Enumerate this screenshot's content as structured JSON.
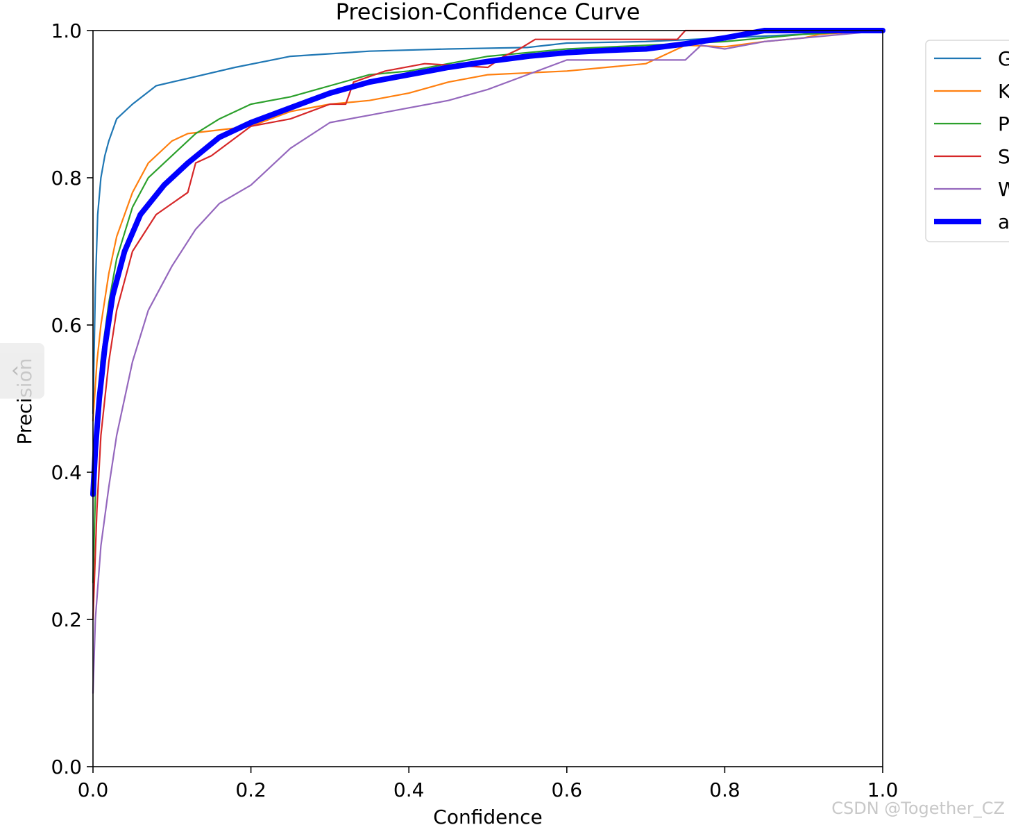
{
  "chart_data": {
    "type": "line",
    "title": "Precision-Confidence Curve",
    "xlabel": "Confidence",
    "ylabel": "Precision",
    "xlim": [
      0,
      1
    ],
    "ylim": [
      0,
      1
    ],
    "xticks": [
      "0.0",
      "0.2",
      "0.4",
      "0.6",
      "0.8",
      "1.0"
    ],
    "yticks": [
      "0.0",
      "0.2",
      "0.4",
      "0.6",
      "0.8",
      "1.0"
    ],
    "grid": false,
    "legend_placement": "outside-top-right",
    "series": [
      {
        "name": "G",
        "color": "#1f77b4",
        "x": [
          0.0,
          0.003,
          0.006,
          0.01,
          0.015,
          0.02,
          0.03,
          0.05,
          0.08,
          0.12,
          0.18,
          0.25,
          0.35,
          0.45,
          0.55,
          0.6,
          0.7,
          0.8,
          0.9,
          1.0
        ],
        "y": [
          0.48,
          0.65,
          0.75,
          0.8,
          0.83,
          0.85,
          0.88,
          0.9,
          0.925,
          0.935,
          0.95,
          0.965,
          0.972,
          0.975,
          0.977,
          0.983,
          0.985,
          0.99,
          0.995,
          1.0
        ]
      },
      {
        "name": "K",
        "color": "#ff7f0e",
        "x": [
          0.0,
          0.005,
          0.01,
          0.02,
          0.03,
          0.05,
          0.07,
          0.1,
          0.12,
          0.16,
          0.2,
          0.25,
          0.3,
          0.35,
          0.4,
          0.45,
          0.5,
          0.6,
          0.65,
          0.7,
          0.75,
          0.8,
          0.85,
          0.9,
          0.92,
          1.0
        ],
        "y": [
          0.47,
          0.55,
          0.6,
          0.67,
          0.72,
          0.78,
          0.82,
          0.85,
          0.86,
          0.865,
          0.87,
          0.89,
          0.9,
          0.905,
          0.915,
          0.93,
          0.94,
          0.945,
          0.95,
          0.955,
          0.98,
          0.978,
          0.985,
          0.99,
          0.995,
          1.0
        ]
      },
      {
        "name": "P",
        "color": "#2ca02c",
        "x": [
          0.0,
          0.005,
          0.01,
          0.02,
          0.03,
          0.05,
          0.07,
          0.1,
          0.13,
          0.16,
          0.2,
          0.25,
          0.3,
          0.35,
          0.4,
          0.45,
          0.5,
          0.55,
          0.6,
          0.7,
          0.8,
          0.9,
          1.0
        ],
        "y": [
          0.25,
          0.45,
          0.55,
          0.63,
          0.69,
          0.76,
          0.8,
          0.83,
          0.86,
          0.88,
          0.9,
          0.91,
          0.925,
          0.94,
          0.945,
          0.955,
          0.965,
          0.97,
          0.975,
          0.98,
          0.985,
          0.995,
          1.0
        ]
      },
      {
        "name": "S",
        "color": "#d62728",
        "x": [
          0.0,
          0.005,
          0.01,
          0.02,
          0.03,
          0.05,
          0.08,
          0.12,
          0.13,
          0.15,
          0.2,
          0.25,
          0.3,
          0.32,
          0.33,
          0.37,
          0.42,
          0.5,
          0.52,
          0.54,
          0.56,
          0.6,
          0.7,
          0.74,
          0.75,
          0.8,
          0.9,
          1.0
        ],
        "y": [
          0.2,
          0.35,
          0.45,
          0.55,
          0.62,
          0.7,
          0.75,
          0.78,
          0.82,
          0.83,
          0.87,
          0.88,
          0.9,
          0.9,
          0.93,
          0.945,
          0.955,
          0.95,
          0.965,
          0.975,
          0.988,
          0.988,
          0.988,
          0.988,
          1.0,
          1.0,
          1.0,
          1.0
        ]
      },
      {
        "name": "W",
        "color": "#9467bd",
        "x": [
          0.0,
          0.003,
          0.01,
          0.02,
          0.03,
          0.05,
          0.07,
          0.1,
          0.13,
          0.16,
          0.2,
          0.25,
          0.3,
          0.35,
          0.4,
          0.45,
          0.5,
          0.55,
          0.6,
          0.65,
          0.7,
          0.75,
          0.77,
          0.8,
          0.85,
          0.9,
          1.0
        ],
        "y": [
          0.1,
          0.2,
          0.3,
          0.38,
          0.45,
          0.55,
          0.62,
          0.68,
          0.73,
          0.765,
          0.79,
          0.84,
          0.875,
          0.885,
          0.895,
          0.905,
          0.92,
          0.94,
          0.96,
          0.96,
          0.96,
          0.96,
          0.98,
          0.975,
          0.985,
          0.99,
          1.0
        ]
      },
      {
        "name": "a",
        "color": "#0000ff",
        "thick": true,
        "x": [
          0.0,
          0.003,
          0.008,
          0.015,
          0.025,
          0.04,
          0.06,
          0.09,
          0.12,
          0.16,
          0.2,
          0.25,
          0.3,
          0.35,
          0.4,
          0.45,
          0.5,
          0.55,
          0.6,
          0.65,
          0.7,
          0.75,
          0.8,
          0.85,
          0.9,
          0.95,
          1.0
        ],
        "y": [
          0.37,
          0.43,
          0.5,
          0.57,
          0.64,
          0.7,
          0.75,
          0.79,
          0.82,
          0.855,
          0.875,
          0.895,
          0.915,
          0.93,
          0.94,
          0.95,
          0.958,
          0.965,
          0.97,
          0.973,
          0.975,
          0.982,
          0.99,
          1.0,
          1.0,
          1.0,
          1.0
        ]
      }
    ]
  },
  "watermark": "CSDN @Together_CZ",
  "side_handle": "‹"
}
